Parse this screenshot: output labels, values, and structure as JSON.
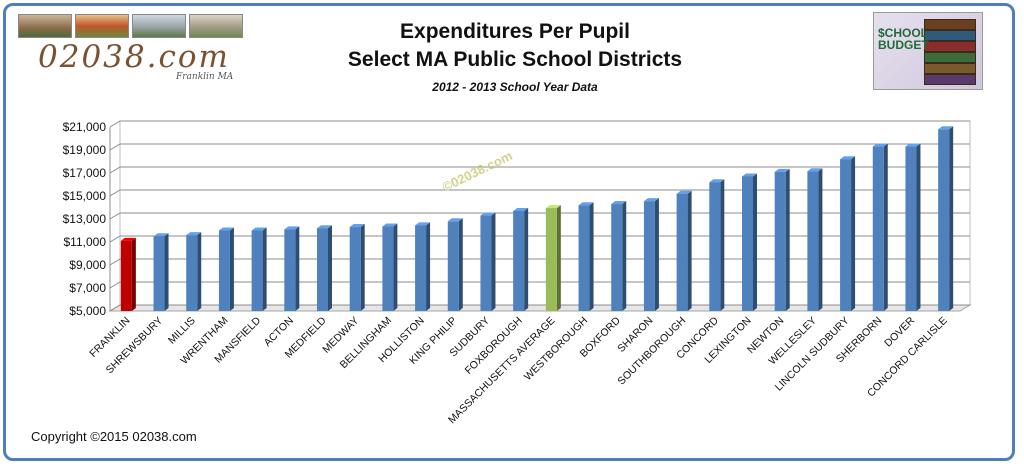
{
  "header": {
    "site_name": "02038.com",
    "site_town": "Franklin MA",
    "title_line1": "Expenditures Per Pupil",
    "title_line2": "Select MA Public School Districts",
    "subtitle": "2012 - 2013 School Year Data"
  },
  "badge": {
    "line1": "$CHOOL",
    "line2": "BUDGET"
  },
  "watermark": "©02038.com",
  "footer": {
    "copyright": "Copyright ©2015 02038.com"
  },
  "colors": {
    "default_bar": "#4f81bd",
    "franklin_bar": "#c00000",
    "average_bar": "#9bbb59",
    "frame": "#4f7ec0"
  },
  "chart_data": {
    "type": "bar",
    "title": "Expenditures Per Pupil",
    "subtitle": "Select MA Public School Districts",
    "xlabel": "",
    "ylabel": "",
    "ylim": [
      5000,
      21000
    ],
    "yticks": [
      5000,
      7000,
      9000,
      11000,
      13000,
      15000,
      17000,
      19000,
      21000
    ],
    "ytick_labels": [
      "$5,000",
      "$7,000",
      "$9,000",
      "$11,000",
      "$13,000",
      "$15,000",
      "$17,000",
      "$19,000",
      "$21,000"
    ],
    "grid": true,
    "legend": "none",
    "categories": [
      "FRANKLIN",
      "SHREWSBURY",
      "MILLIS",
      "WRENTHAM",
      "MANSFIELD",
      "ACTON",
      "MEDFIELD",
      "MEDWAY",
      "BELLINGHAM",
      "HOLLISTON",
      "KING PHILIP",
      "SUDBURY",
      "FOXBOROUGH",
      "MASSACHUSETTS AVERAGE",
      "WESTBOROUGH",
      "BOXFORD",
      "SHARON",
      "SOUTHBOROUGH",
      "CONCORD",
      "LEXINGTON",
      "NEWTON",
      "WELLESLEY",
      "LINCOLN SUDBURY",
      "SHERBORN",
      "DOVER",
      "CONCORD CARLISLE"
    ],
    "values": [
      11100,
      11500,
      11600,
      12000,
      12000,
      12100,
      12200,
      12300,
      12350,
      12450,
      12800,
      13300,
      13700,
      13950,
      14200,
      14300,
      14550,
      15200,
      16200,
      16700,
      17100,
      17150,
      18200,
      19300,
      19300,
      20800
    ],
    "highlight": {
      "FRANKLIN": "#c00000",
      "MASSACHUSETTS AVERAGE": "#9bbb59"
    }
  }
}
